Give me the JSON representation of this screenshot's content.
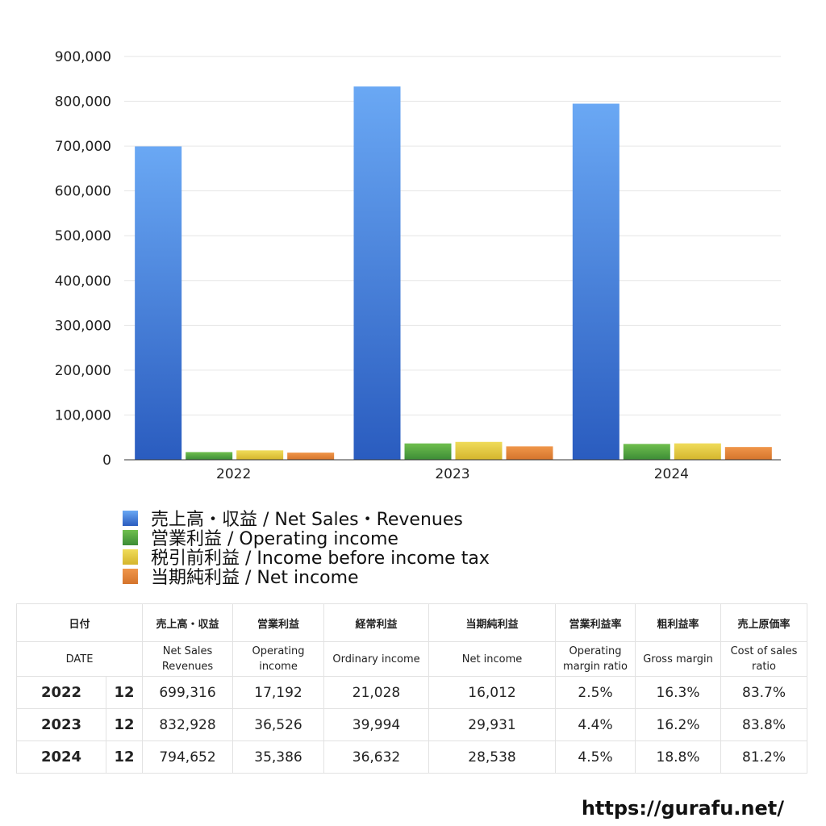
{
  "chart_data": {
    "type": "bar",
    "categories": [
      "2022",
      "2023",
      "2024"
    ],
    "ylim": [
      0,
      900000
    ],
    "yticks": [
      0,
      100000,
      200000,
      300000,
      400000,
      500000,
      600000,
      700000,
      800000,
      900000
    ],
    "ytick_labels": [
      "0",
      "100,000",
      "200,000",
      "300,000",
      "400,000",
      "500,000",
      "600,000",
      "700,000",
      "800,000",
      "900,000"
    ],
    "grid": true,
    "legend_placement": "bottom-left",
    "series": [
      {
        "name": "売上高・収益 / Net Sales・Revenues",
        "values": [
          699316,
          832928,
          794652
        ],
        "color_top": "#6aa8f4",
        "color_bottom": "#2a5cbf"
      },
      {
        "name": "営業利益 / Operating income",
        "values": [
          17192,
          36526,
          35386
        ],
        "color_top": "#6fbf4e",
        "color_bottom": "#3c8c36"
      },
      {
        "name": "税引前利益 / Income before income tax",
        "values": [
          21028,
          39994,
          36632
        ],
        "color_top": "#f0dc5a",
        "color_bottom": "#d4b52c"
      },
      {
        "name": "当期純利益 / Net income",
        "values": [
          16012,
          29931,
          28538
        ],
        "color_top": "#f0964a",
        "color_bottom": "#d4742c"
      }
    ]
  },
  "table": {
    "headers_jp": [
      "日付",
      "売上高・収益",
      "営業利益",
      "経常利益",
      "当期純利益",
      "営業利益率",
      "粗利益率",
      "売上原価率"
    ],
    "headers_en": [
      "DATE",
      "Net Sales Revenues",
      "Operating income",
      "Ordinary income",
      "Net income",
      "Operating margin ratio",
      "Gross margin",
      "Cost of sales ratio"
    ],
    "rows": [
      {
        "year": "2022",
        "month": "12",
        "sales": "699,316",
        "op": "17,192",
        "ord": "21,028",
        "net": "16,012",
        "opm": "2.5%",
        "gm": "16.3%",
        "cos": "83.7%"
      },
      {
        "year": "2023",
        "month": "12",
        "sales": "832,928",
        "op": "36,526",
        "ord": "39,994",
        "net": "29,931",
        "opm": "4.4%",
        "gm": "16.2%",
        "cos": "83.8%"
      },
      {
        "year": "2024",
        "month": "12",
        "sales": "794,652",
        "op": "35,386",
        "ord": "36,632",
        "net": "28,538",
        "opm": "4.5%",
        "gm": "18.8%",
        "cos": "81.2%"
      }
    ]
  },
  "site_url": "https://gurafu.net/"
}
